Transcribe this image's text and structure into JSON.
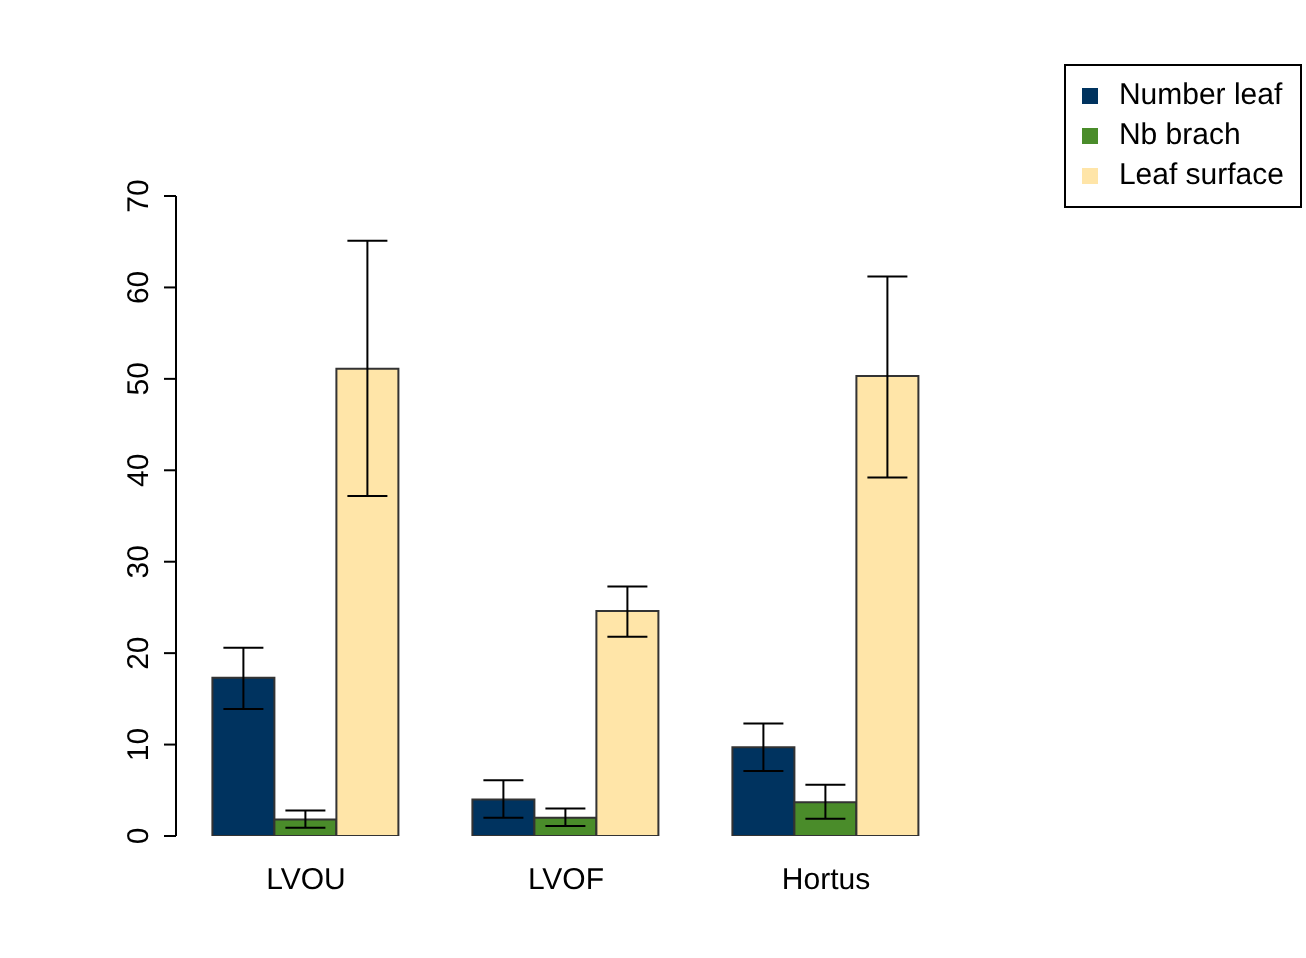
{
  "chart_data": {
    "type": "bar",
    "categories": [
      "LVOU",
      "LVOF",
      "Hortus"
    ],
    "series": [
      {
        "name": "Number leaf",
        "color": "#00335f",
        "values": [
          17.3,
          4.0,
          9.7
        ],
        "errors": [
          [
            13.9,
            20.6
          ],
          [
            2.0,
            6.1
          ],
          [
            7.1,
            12.3
          ]
        ]
      },
      {
        "name": "Nb brach",
        "color": "#4a8c2a",
        "values": [
          1.8,
          2.0,
          3.7
        ],
        "errors": [
          [
            0.9,
            2.8
          ],
          [
            1.1,
            3.0
          ],
          [
            1.9,
            5.6
          ]
        ]
      },
      {
        "name": "Leaf surface",
        "color": "#ffe5a8",
        "values": [
          51.1,
          24.6,
          50.3
        ],
        "errors": [
          [
            37.2,
            65.1
          ],
          [
            21.8,
            27.3
          ],
          [
            39.2,
            61.2
          ]
        ]
      }
    ],
    "ylim": [
      0,
      70
    ],
    "yticks": [
      0,
      10,
      20,
      30,
      40,
      50,
      60,
      70
    ],
    "legend": "top right"
  }
}
